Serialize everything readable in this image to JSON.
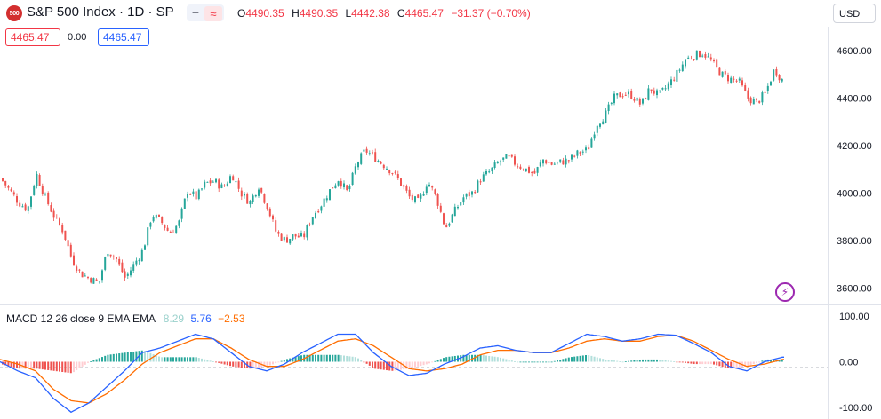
{
  "header": {
    "symbol_badge": "500",
    "title": "S&P 500 Index · 1D · SP",
    "collapse_minus": "−",
    "collapse_waves": "≈",
    "ohlc": {
      "o_label": "O",
      "o_value": "4490.35",
      "h_label": "H",
      "h_value": "4490.35",
      "l_label": "L",
      "l_value": "4442.38",
      "c_label": "C",
      "c_value": "4465.47",
      "change": "−31.37 (−0.70%)"
    },
    "currency": "USD",
    "bid": "4465.47",
    "spread": "0.00",
    "ask": "4465.47"
  },
  "macd_legend": {
    "label": "MACD 12 26 close 9 EMA EMA",
    "histogram": "8.29",
    "macd": "5.76",
    "signal": "−2.53"
  },
  "icons": {
    "lightning": "lightning-icon"
  },
  "colors": {
    "up": "#26a69a",
    "down": "#ef5350",
    "macd": "#2962ff",
    "signal": "#ff6d00",
    "hist_up_light": "#b2dfdb",
    "hist_down_light": "#ffcdd2"
  },
  "chart_data": [
    {
      "type": "candlestick",
      "ylim": [
        3530,
        4700
      ],
      "yticks": [
        "4600.00",
        "4400.00",
        "4200.00",
        "4000.00",
        "3800.00",
        "3600.00"
      ],
      "ytick_values": [
        4600,
        4400,
        4200,
        4000,
        3800,
        3600
      ],
      "grid": false,
      "close_path_x": [
        0,
        10,
        20,
        30,
        40,
        50,
        60,
        70,
        80,
        90,
        100,
        110,
        120,
        130,
        140,
        150,
        160,
        170,
        180,
        190,
        200,
        210,
        220,
        230,
        240,
        250,
        260,
        270,
        280,
        290,
        300,
        310,
        320,
        330,
        340,
        350,
        360,
        370,
        380,
        390,
        400,
        410,
        420,
        430,
        440,
        450,
        460,
        470,
        480,
        490,
        500,
        510,
        520,
        530,
        540,
        550,
        560,
        570,
        580,
        590,
        600,
        610,
        620,
        630,
        640,
        650,
        660,
        670,
        680,
        690,
        700,
        710,
        720,
        730,
        740,
        750,
        760,
        770,
        780,
        790,
        800,
        810,
        820,
        830,
        840,
        850,
        860,
        870,
        880
      ],
      "close_path": [
        4060,
        4010,
        3960,
        3930,
        4080,
        3980,
        3900,
        3840,
        3720,
        3660,
        3640,
        3620,
        3760,
        3720,
        3640,
        3700,
        3760,
        3910,
        3880,
        3830,
        3870,
        4010,
        3980,
        4040,
        4050,
        4020,
        4080,
        4000,
        3960,
        4030,
        3940,
        3830,
        3800,
        3820,
        3810,
        3900,
        3950,
        4010,
        4060,
        4000,
        4120,
        4180,
        4150,
        4120,
        4090,
        4040,
        3980,
        3960,
        4050,
        3980,
        3850,
        3920,
        3980,
        4000,
        4060,
        4090,
        4130,
        4150,
        4120,
        4100,
        4080,
        4140,
        4120,
        4130,
        4140,
        4170,
        4180,
        4290,
        4330,
        4400,
        4420,
        4410,
        4370,
        4440,
        4410,
        4450,
        4500,
        4560,
        4580,
        4590,
        4550,
        4500,
        4480,
        4470,
        4400,
        4380,
        4420,
        4520,
        4470
      ]
    },
    {
      "type": "macd",
      "ylim": [
        -125,
        125
      ],
      "yticks": [
        "100.00",
        "0.00",
        "-100.00"
      ],
      "ytick_values": [
        100,
        0,
        -100
      ],
      "series": [
        {
          "name": "MACD",
          "x": [
            0,
            20,
            40,
            60,
            80,
            100,
            120,
            140,
            160,
            180,
            200,
            220,
            240,
            260,
            280,
            300,
            320,
            340,
            360,
            380,
            400,
            420,
            440,
            460,
            480,
            500,
            520,
            540,
            560,
            580,
            600,
            620,
            640,
            660,
            680,
            700,
            720,
            740,
            760,
            780,
            800,
            820,
            840,
            860,
            880
          ],
          "values": [
            0,
            -20,
            -35,
            -80,
            -110,
            -90,
            -55,
            -20,
            20,
            30,
            45,
            60,
            50,
            20,
            -10,
            -20,
            -5,
            20,
            40,
            60,
            60,
            20,
            -10,
            -30,
            -25,
            -5,
            10,
            30,
            35,
            25,
            20,
            20,
            40,
            60,
            55,
            45,
            50,
            60,
            58,
            40,
            20,
            -10,
            -20,
            0,
            10
          ]
        },
        {
          "name": "Signal",
          "x": [
            0,
            20,
            40,
            60,
            80,
            100,
            120,
            140,
            160,
            180,
            200,
            220,
            240,
            260,
            280,
            300,
            320,
            340,
            360,
            380,
            400,
            420,
            440,
            460,
            480,
            500,
            520,
            540,
            560,
            580,
            600,
            620,
            640,
            660,
            680,
            700,
            720,
            740,
            760,
            780,
            800,
            820,
            840,
            860,
            880
          ],
          "values": [
            5,
            -5,
            -20,
            -60,
            -85,
            -90,
            -70,
            -40,
            -5,
            20,
            35,
            50,
            50,
            30,
            5,
            -10,
            -10,
            5,
            25,
            45,
            50,
            35,
            10,
            -15,
            -20,
            -15,
            -5,
            15,
            25,
            25,
            20,
            20,
            30,
            45,
            50,
            45,
            45,
            55,
            58,
            45,
            25,
            5,
            -10,
            -5,
            5
          ]
        }
      ]
    }
  ]
}
